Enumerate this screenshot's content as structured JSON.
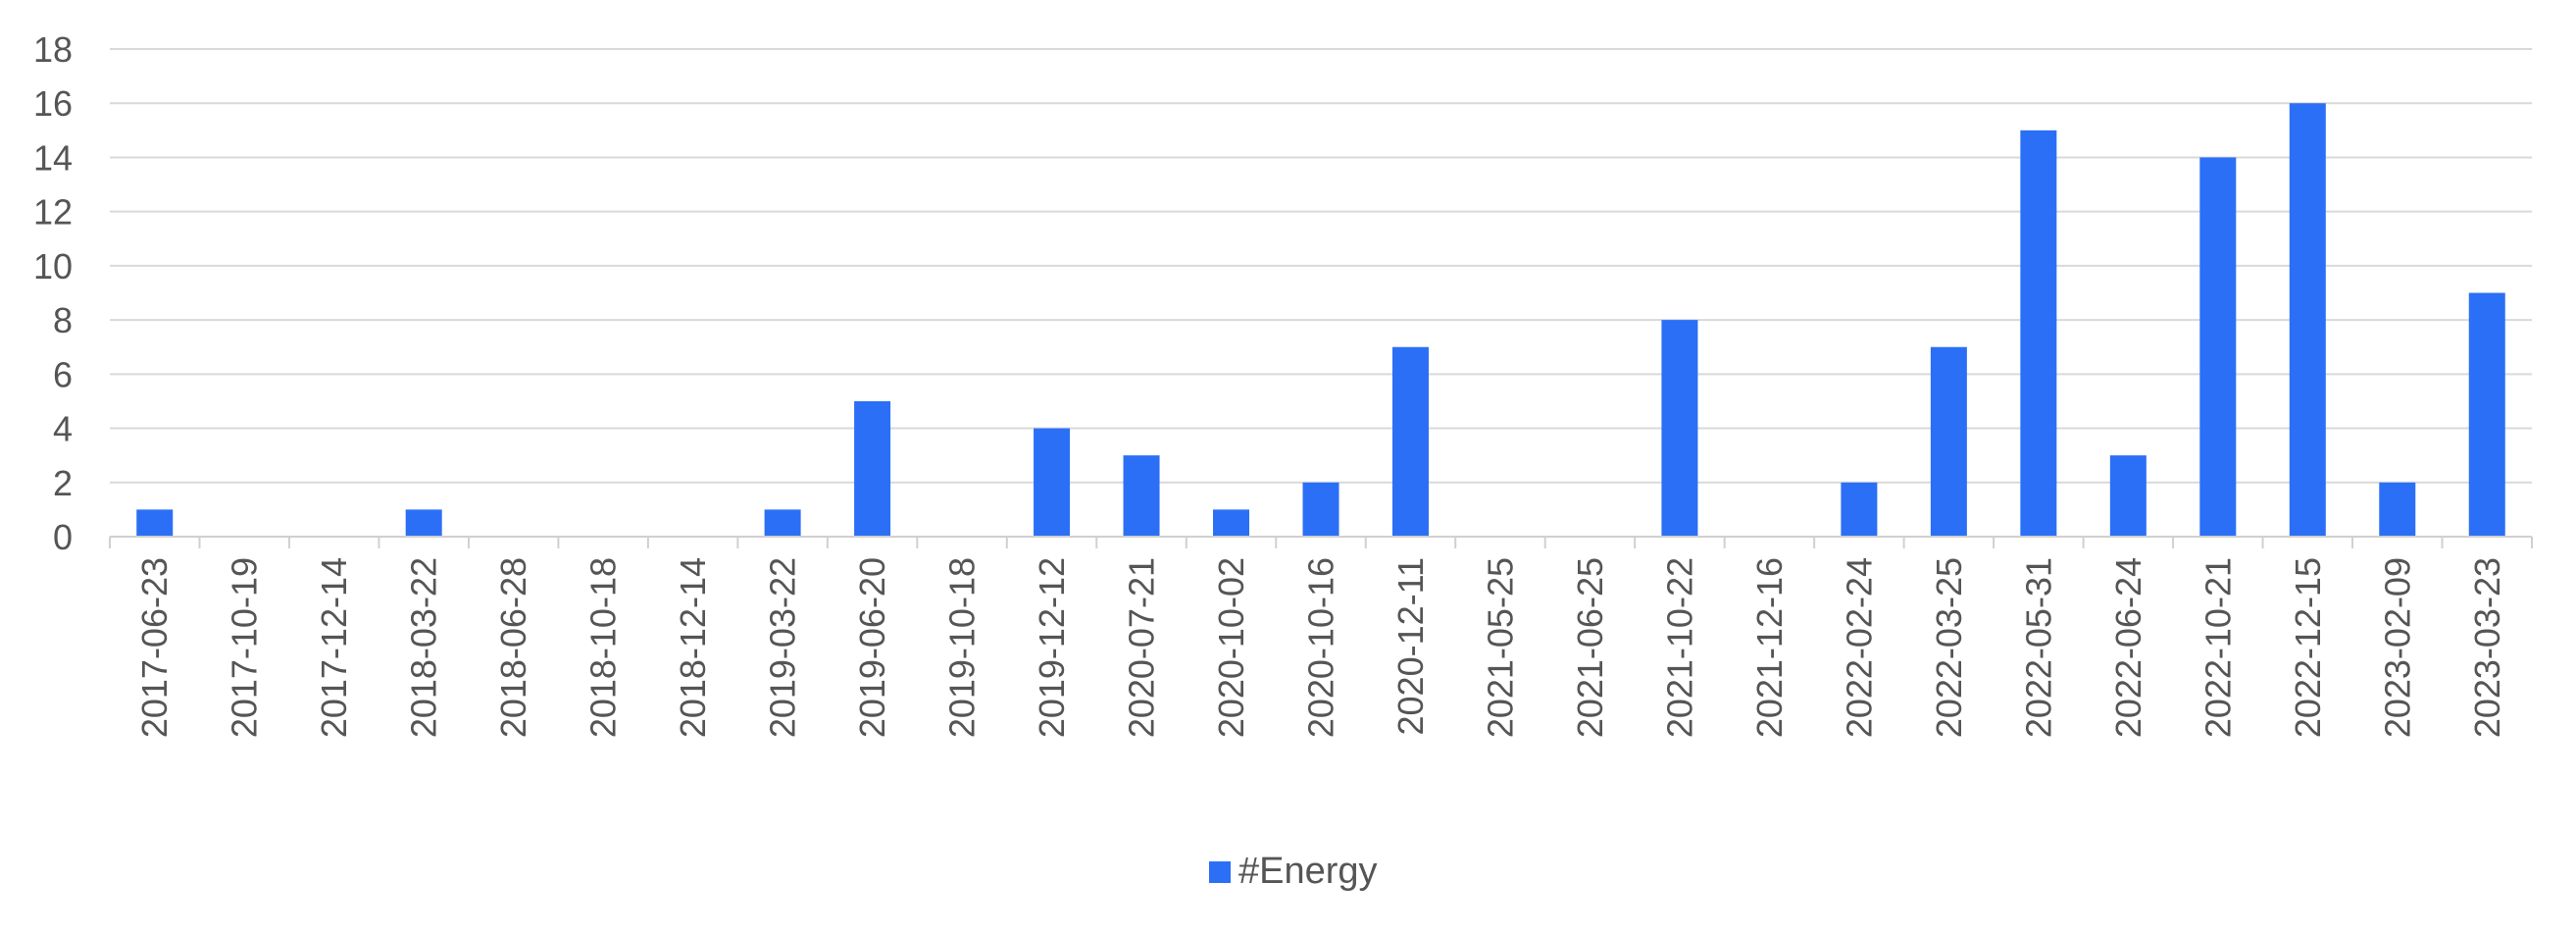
{
  "chart_data": {
    "type": "bar",
    "categories": [
      "2017-06-23",
      "2017-10-19",
      "2017-12-14",
      "2018-03-22",
      "2018-06-28",
      "2018-10-18",
      "2018-12-14",
      "2019-03-22",
      "2019-06-20",
      "2019-10-18",
      "2019-12-12",
      "2020-07-21",
      "2020-10-02",
      "2020-10-16",
      "2020-12-11",
      "2021-05-25",
      "2021-06-25",
      "2021-10-22",
      "2021-12-16",
      "2022-02-24",
      "2022-03-25",
      "2022-05-31",
      "2022-06-24",
      "2022-10-21",
      "2022-12-15",
      "2023-02-09",
      "2023-03-23"
    ],
    "series": [
      {
        "name": "#Energy",
        "color": "#2b6ff6",
        "values": [
          1,
          0,
          0,
          1,
          0,
          0,
          0,
          1,
          5,
          0,
          4,
          3,
          1,
          2,
          7,
          0,
          0,
          8,
          0,
          2,
          7,
          15,
          3,
          14,
          16,
          2,
          9
        ]
      }
    ],
    "ylim": [
      0,
      18
    ],
    "yticks": [
      0,
      2,
      4,
      6,
      8,
      10,
      12,
      14,
      16,
      18
    ],
    "grid": true,
    "legend_position": "bottom-center",
    "gridline_color": "#d9d9d9",
    "axis_color": "#d0d0d0"
  }
}
